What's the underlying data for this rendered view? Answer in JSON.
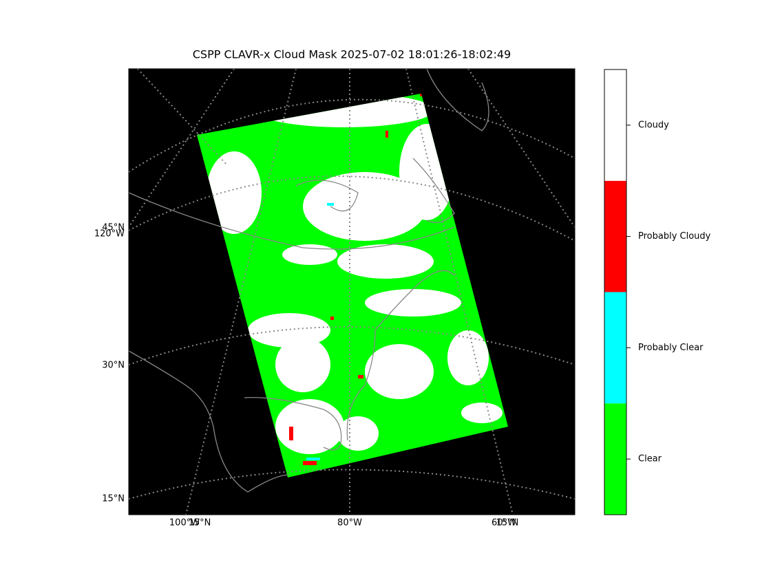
{
  "title": "CSPP CLAVR-x Cloud Mask 2025-07-02 18:01:26-18:02:49",
  "map_labels": {
    "left": [
      "45°N",
      "120°W",
      "30°N",
      "15°N"
    ],
    "bottom": [
      "100°W",
      "15°N",
      "80°W",
      "60°W",
      "15°N"
    ]
  },
  "colorbar": [
    {
      "label": "Clear",
      "color": "#00ff00"
    },
    {
      "label": "Probably Clear",
      "color": "#00ffff"
    },
    {
      "label": "Probably Cloudy",
      "color": "#ff0000"
    },
    {
      "label": "Cloudy",
      "color": "#ffffff"
    }
  ]
}
